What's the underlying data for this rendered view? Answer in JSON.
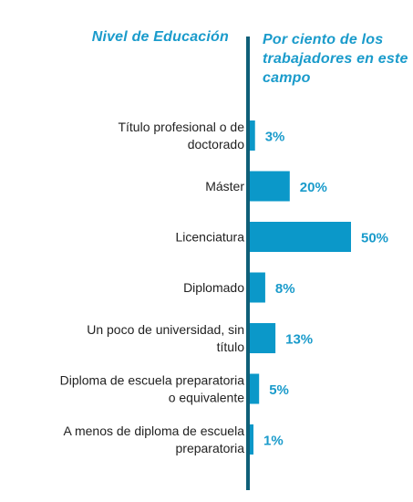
{
  "headers": {
    "left": "Nivel de Educación",
    "right": "Por ciento de los trabajadores en este campo"
  },
  "colors": {
    "bar": "#0b98c9",
    "axis": "#0f5f78",
    "header": "#1a9bcb",
    "value_label": "#1a9bcb"
  },
  "chart_data": {
    "type": "bar",
    "orientation": "horizontal",
    "categories": [
      [
        "Título profesional o de",
        "doctorado"
      ],
      [
        "Máster"
      ],
      [
        "Licenciatura"
      ],
      [
        "Diplomado"
      ],
      [
        "Un poco de universidad, sin",
        "título"
      ],
      [
        "Diploma de escuela preparatoria",
        "o equivalente"
      ],
      [
        "A menos de diploma de escuela",
        "preparatoria"
      ]
    ],
    "values": [
      3,
      20,
      50,
      8,
      13,
      5,
      1
    ],
    "value_labels": [
      "3%",
      "20%",
      "50%",
      "8%",
      "13%",
      "5%",
      "1%"
    ],
    "xlim": [
      0,
      50
    ],
    "grid": false,
    "legend": "none"
  }
}
